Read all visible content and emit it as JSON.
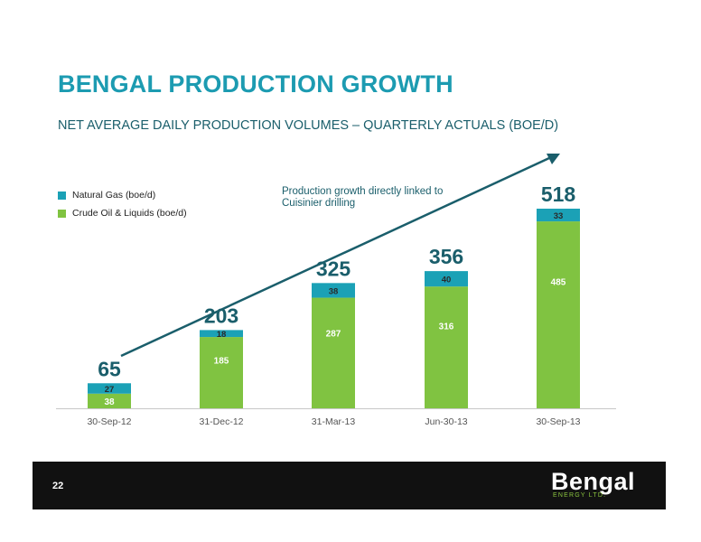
{
  "title": "BENGAL PRODUCTION GROWTH",
  "subtitle": "NET AVERAGE DAILY PRODUCTION VOLUMES – QUARTERLY ACTUALS (BOE/D)",
  "annotation": "Production growth directly linked to Cuisinier drilling",
  "footer": {
    "page_number": "22",
    "logo_text": "Bengal",
    "logo_subtext": "ENERGY LTD."
  },
  "colors": {
    "natural_gas": "#1ba1b6",
    "crude_oil": "#80c341",
    "total_label": "#1a5e6b",
    "title": "#1c9bb1"
  },
  "chart_data": {
    "type": "bar",
    "stacked": true,
    "categories": [
      "30-Sep-12",
      "31-Dec-12",
      "31-Mar-13",
      "Jun-30-13",
      "30-Sep-13"
    ],
    "series": [
      {
        "name": "Crude Oil & Liquids (boe/d)",
        "values": [
          38,
          185,
          287,
          316,
          485
        ]
      },
      {
        "name": "Natural Gas (boe/d)",
        "values": [
          27,
          18,
          38,
          40,
          33
        ]
      }
    ],
    "totals": [
      65,
      203,
      325,
      356,
      518
    ],
    "legend": [
      "Natural Gas (boe/d)",
      "Crude Oil & Liquids (boe/d)"
    ],
    "legend_position": "top-left",
    "ylim": [
      0,
      518
    ],
    "grid": false,
    "trend_arrow": true
  }
}
